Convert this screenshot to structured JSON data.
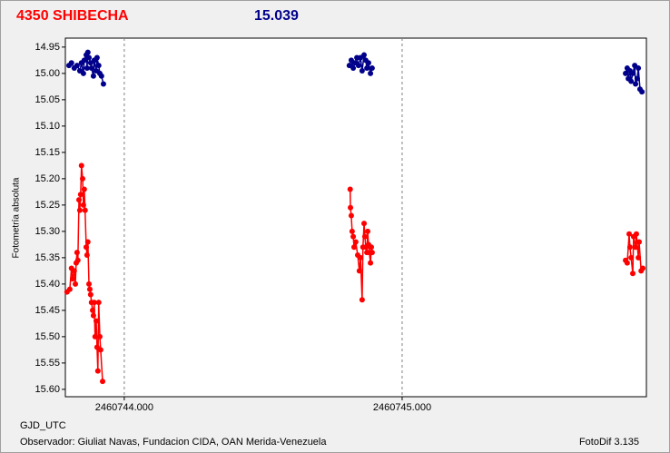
{
  "chart_data": {
    "type": "line",
    "title": "4350 SHIBECHA",
    "subtitle": "15.039",
    "ylabel": "Fotometría absoluta",
    "xlabel": "GJD_UTC",
    "footer_left": "Observador: Giuliat Navas, Fundacion CIDA, OAN  Merida-Venezuela",
    "footer_right": "FotoDif 3.135",
    "xlim": [
      2460743.788,
      2460745.879
    ],
    "ylim": [
      15.614,
      14.933
    ],
    "xticks": [
      {
        "value": 2460744,
        "label": "2460744.000"
      },
      {
        "value": 2460745,
        "label": "2460745.000"
      }
    ],
    "yticks": [
      14.95,
      {
        "value": 15,
        "label": "15.00"
      },
      15.05,
      {
        "value": 15.1,
        "label": "15.10"
      },
      15.15,
      {
        "value": 15.2,
        "label": "15.20"
      },
      15.25,
      {
        "value": 15.3,
        "label": "15.30"
      },
      15.35,
      {
        "value": 15.4,
        "label": "15.40"
      },
      15.45,
      {
        "value": 15.5,
        "label": "15.50"
      },
      15.55,
      {
        "value": 15.6,
        "label": "15.60"
      }
    ],
    "grid": "x",
    "series": [
      {
        "color": "#00008b",
        "x": [
          2460743.801,
          2460743.81,
          2460743.82,
          2460743.83,
          2460743.84,
          2460743.846,
          2460743.853,
          2460743.856,
          2460743.863,
          2460743.866,
          2460743.869,
          2460743.873,
          2460743.879,
          2460743.882,
          2460743.889,
          2460743.892,
          2460743.899,
          2460743.902,
          2460743.908,
          2460743.912,
          2460743.918,
          2460743.925,
          null,
          2460744.81,
          2460744.817,
          2460744.824,
          2460744.83,
          2460744.837,
          2460744.843,
          2460744.85,
          2460744.856,
          2460744.863,
          2460744.869,
          2460744.873,
          2460744.879,
          2460744.886,
          2460744.892,
          null,
          2460745.804,
          2460745.81,
          2460745.814,
          2460745.82,
          2460745.824,
          2460745.83,
          2460745.837,
          2460745.84,
          2460745.846,
          2460745.85,
          2460745.856,
          2460745.863
        ],
        "values": [
          14.985,
          14.98,
          14.99,
          14.985,
          14.995,
          14.98,
          15.0,
          14.975,
          14.965,
          14.99,
          14.96,
          14.97,
          14.98,
          14.99,
          15.005,
          14.975,
          14.995,
          14.97,
          14.985,
          15.0,
          15.005,
          15.02,
          null,
          14.985,
          14.975,
          14.99,
          14.98,
          14.97,
          14.985,
          14.97,
          14.995,
          14.965,
          14.975,
          14.99,
          14.98,
          15.0,
          14.99,
          null,
          15.0,
          14.99,
          15.01,
          14.995,
          15.015,
          15.0,
          14.985,
          15.02,
          15.01,
          14.99,
          15.03,
          15.035
        ]
      },
      {
        "color": "#ff0000",
        "x": [
          2460743.794,
          2460743.804,
          2460743.81,
          2460743.814,
          2460743.82,
          2460743.824,
          2460743.827,
          2460743.83,
          2460743.833,
          2460743.837,
          2460743.84,
          2460743.843,
          2460743.846,
          2460743.85,
          2460743.853,
          2460743.856,
          2460743.859,
          2460743.863,
          2460743.866,
          2460743.869,
          2460743.873,
          2460743.876,
          2460743.879,
          2460743.882,
          2460743.886,
          2460743.889,
          2460743.892,
          2460743.895,
          2460743.899,
          2460743.902,
          2460743.905,
          2460743.908,
          2460743.912,
          2460743.915,
          2460743.922,
          null,
          2460744.813,
          2460744.814,
          2460744.817,
          2460744.82,
          2460744.824,
          2460744.827,
          2460744.833,
          2460744.84,
          2460744.846,
          2460744.85,
          2460744.856,
          2460744.859,
          2460744.863,
          2460744.866,
          2460744.869,
          2460744.873,
          2460744.876,
          2460744.879,
          2460744.882,
          2460744.886,
          2460744.889,
          2460744.892,
          null,
          2460745.804,
          2460745.81,
          2460745.817,
          2460745.82,
          2460745.824,
          2460745.83,
          2460745.833,
          2460745.84,
          2460745.843,
          2460745.85,
          2460745.853,
          2460745.86,
          2460745.866
        ],
        "values": [
          15.415,
          15.41,
          15.37,
          15.39,
          15.375,
          15.4,
          15.36,
          15.34,
          15.355,
          15.24,
          15.26,
          15.23,
          15.175,
          15.2,
          15.25,
          15.22,
          15.26,
          15.33,
          15.345,
          15.32,
          15.4,
          15.41,
          15.42,
          15.435,
          15.45,
          15.46,
          15.435,
          15.5,
          15.47,
          15.52,
          15.565,
          15.435,
          15.5,
          15.525,
          15.585,
          null,
          15.22,
          15.255,
          15.27,
          15.3,
          15.31,
          15.33,
          15.32,
          15.345,
          15.375,
          15.35,
          15.43,
          15.33,
          15.285,
          15.31,
          15.33,
          15.34,
          15.3,
          15.325,
          15.34,
          15.36,
          15.33,
          15.34,
          null,
          15.355,
          15.36,
          15.305,
          15.33,
          15.35,
          15.38,
          15.31,
          15.33,
          15.305,
          15.35,
          15.32,
          15.375,
          15.37
        ]
      }
    ]
  }
}
